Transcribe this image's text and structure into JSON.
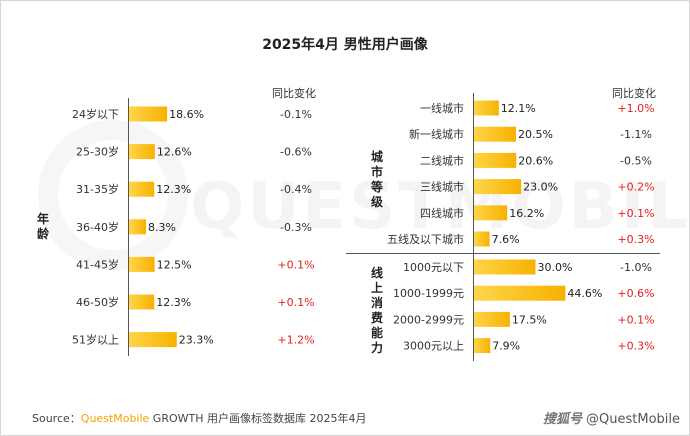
{
  "title": "2025年4月 男性用户画像",
  "change_header": "同比变化",
  "colors": {
    "bar_start": "#ffd54a",
    "bar_end": "#f7b100",
    "positive": "#e02020",
    "neutral": "#333333"
  },
  "chart_data": [
    {
      "type": "bar",
      "group_label": "年龄",
      "categories": [
        "24岁以下",
        "25-30岁",
        "31-35岁",
        "36-40岁",
        "41-45岁",
        "46-50岁",
        "51岁以上"
      ],
      "values": [
        18.6,
        12.6,
        12.3,
        8.3,
        12.5,
        12.3,
        23.3
      ],
      "value_labels": [
        "18.6%",
        "12.6%",
        "12.3%",
        "8.3%",
        "12.5%",
        "12.3%",
        "23.3%"
      ],
      "changes": [
        "-0.1%",
        "-0.6%",
        "-0.4%",
        "-0.3%",
        "+0.1%",
        "+0.1%",
        "+1.2%"
      ]
    },
    {
      "type": "bar",
      "group_label": "城市等级",
      "categories": [
        "一线城市",
        "新一线城市",
        "二线城市",
        "三线城市",
        "四线城市",
        "五线及以下城市"
      ],
      "values": [
        12.1,
        20.5,
        20.6,
        23.0,
        16.2,
        7.6
      ],
      "value_labels": [
        "12.1%",
        "20.5%",
        "20.6%",
        "23.0%",
        "16.2%",
        "7.6%"
      ],
      "changes": [
        "+1.0%",
        "-1.1%",
        "-0.5%",
        "+0.2%",
        "+0.1%",
        "+0.3%"
      ]
    },
    {
      "type": "bar",
      "group_label": "线上消费能力",
      "categories": [
        "1000元以下",
        "1000-1999元",
        "2000-2999元",
        "3000元以上"
      ],
      "values": [
        30.0,
        44.6,
        17.5,
        7.9
      ],
      "value_labels": [
        "30.0%",
        "44.6%",
        "17.5%",
        "7.9%"
      ],
      "changes": [
        "-1.0%",
        "+0.6%",
        "+0.1%",
        "+0.3%"
      ]
    }
  ],
  "watermark": "QUESTMOBILE",
  "source": {
    "prefix": "Source：",
    "brand": "QuestMobile",
    "text": " GROWTH 用户画像标签数据库 2025年4月"
  },
  "footer": {
    "cn": "搜狐号",
    "handle": "@QuestMobile"
  }
}
